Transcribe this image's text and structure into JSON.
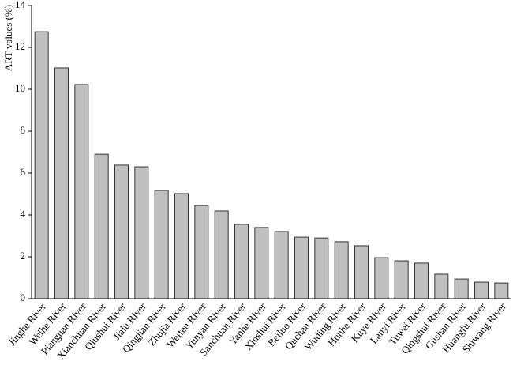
{
  "chart_data": {
    "type": "bar",
    "y_label": "ART values (%)",
    "categories": [
      "Jinghe River",
      "Weihe River",
      "Pianguan River",
      "Xianchuan River",
      "Qiushui River",
      "Jialu River",
      "Qingjian River",
      "Zhujia River",
      "Weifen River",
      "Yunyan River",
      "Sanchuan River",
      "Yanhe River",
      "Xinshui River",
      "Beiluo River",
      "Quchan River",
      "Wuding River",
      "Hunhe River",
      "Kuye River",
      "Lanyi River",
      "Tuwei River",
      "Qingshui River",
      "Gushan River",
      "Huangfu River",
      "Shiwang River"
    ],
    "values": [
      12.75,
      11.02,
      10.23,
      6.9,
      6.38,
      6.3,
      5.17,
      5.02,
      4.45,
      4.19,
      3.55,
      3.4,
      3.21,
      2.94,
      2.9,
      2.72,
      2.53,
      1.96,
      1.81,
      1.7,
      1.17,
      0.94,
      0.79,
      0.75
    ],
    "color": "#c0c0c0",
    "ylim": [
      0,
      14
    ],
    "yticks": [
      0,
      2,
      4,
      6,
      8,
      10,
      12,
      14
    ]
  }
}
